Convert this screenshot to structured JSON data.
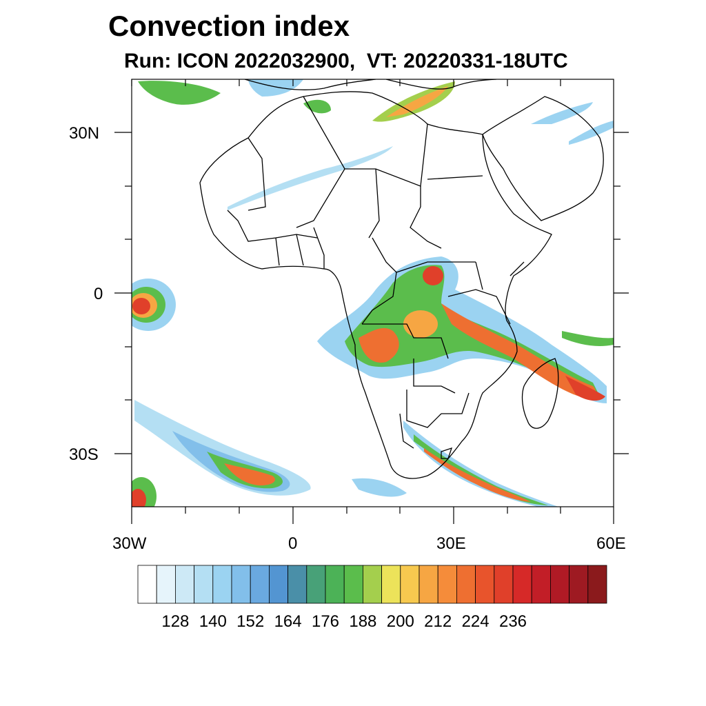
{
  "title": "Convection index",
  "subtitle": "Run: ICON 2022032900,  VT: 20220331-18UTC",
  "lat_labels": [
    "30N",
    "0",
    "30S"
  ],
  "lon_labels": [
    "30W",
    "0",
    "30E",
    "60E"
  ],
  "colorbar": {
    "colors": [
      "#ffffff",
      "#e6f4fb",
      "#cde9f6",
      "#b4dff3",
      "#9bd3f1",
      "#82bfea",
      "#6aa9e0",
      "#5395d2",
      "#4a8fa8",
      "#48a178",
      "#4cb257",
      "#5bbd4c",
      "#a4cf4d",
      "#ece35a",
      "#f7c94f",
      "#f6a643",
      "#f58c3a",
      "#ee6f31",
      "#e8542c",
      "#e0402a",
      "#d62928",
      "#c21e27",
      "#b01a25",
      "#9e1a22",
      "#8b1a1c"
    ],
    "labels": [
      "128",
      "140",
      "152",
      "164",
      "176",
      "188",
      "200",
      "212",
      "224",
      "236"
    ]
  }
}
